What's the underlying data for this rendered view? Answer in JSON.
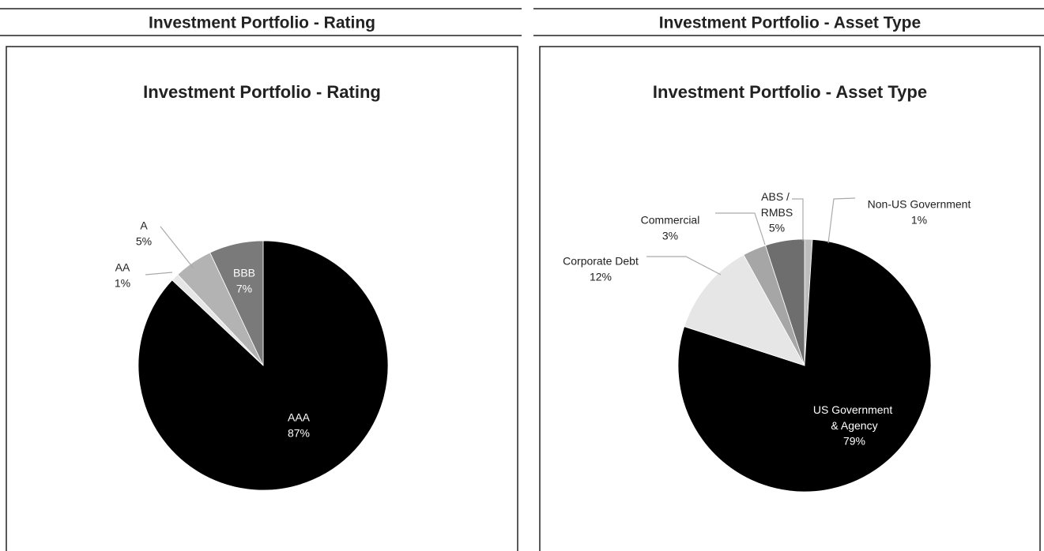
{
  "chart_data": [
    {
      "type": "pie",
      "panel_title": "Investment Portfolio - Rating",
      "title": "Investment Portfolio - Rating",
      "categories": [
        "AAA",
        "AA",
        "A",
        "BBB"
      ],
      "values": [
        87,
        1,
        5,
        7
      ],
      "value_labels": [
        "87%",
        "1%",
        "5%",
        "7%"
      ],
      "colors": [
        "#000000",
        "#e6e6e6",
        "#b3b3b3",
        "#7a7a7a"
      ]
    },
    {
      "type": "pie",
      "panel_title": "Investment Portfolio - Asset Type",
      "title": "Investment Portfolio - Asset Type",
      "categories": [
        "Non-US Government",
        "US Government & Agency",
        "Corporate Debt",
        "Commercial",
        "ABS / RMBS"
      ],
      "values": [
        1,
        79,
        12,
        3,
        5
      ],
      "value_labels": [
        "1%",
        "79%",
        "12%",
        "3%",
        "5%"
      ],
      "colors": [
        "#bdbdbd",
        "#000000",
        "#e6e6e6",
        "#a6a6a6",
        "#6e6e6e"
      ]
    }
  ]
}
